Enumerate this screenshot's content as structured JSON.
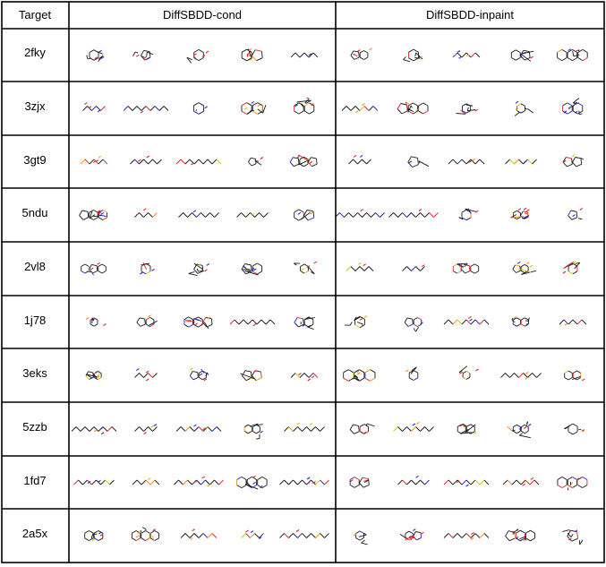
{
  "header": {
    "target": "Target",
    "group_cond": "DiffSBDD-cond",
    "group_inpaint": "DiffSBDD-inpaint"
  },
  "rows": [
    {
      "target": "2fky"
    },
    {
      "target": "3zjx"
    },
    {
      "target": "3gt9"
    },
    {
      "target": "5ndu"
    },
    {
      "target": "2vl8"
    },
    {
      "target": "1j78"
    },
    {
      "target": "3eks"
    },
    {
      "target": "5zzb"
    },
    {
      "target": "1fd7"
    },
    {
      "target": "2a5x"
    }
  ],
  "molecule_cells_per_row": 10,
  "atom_colors": {
    "bond": "#1a1a1a",
    "oxygen": "#e8201f",
    "nitrogen": "#2323e0",
    "sulfur": "#d6c200",
    "phosphorus": "#ff8c00"
  }
}
